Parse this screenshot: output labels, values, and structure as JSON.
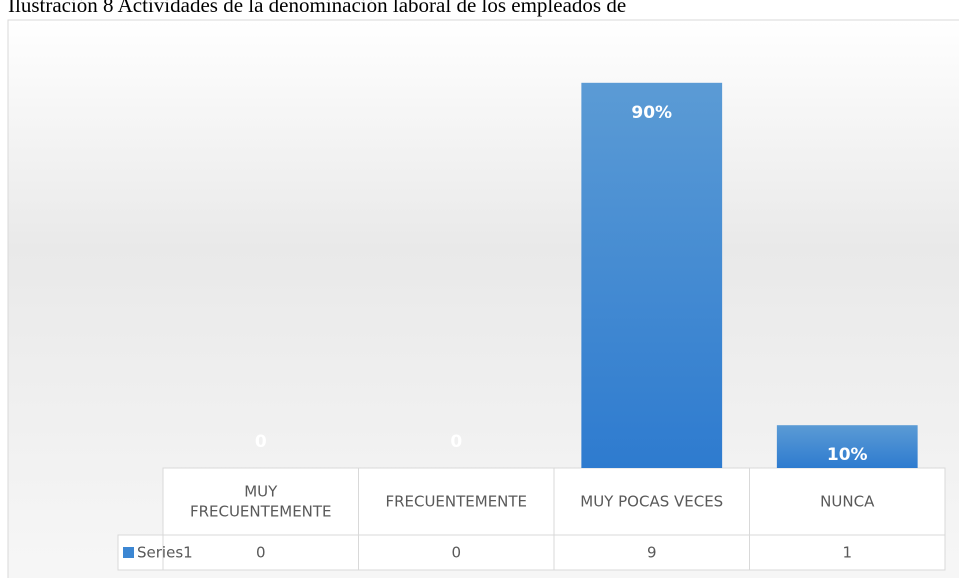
{
  "chart_data": {
    "type": "bar",
    "title": "Ilustración 8 Actividades de la denominación laboral de los empleados de",
    "categories": [
      "MUY FRECUENTEMENTE",
      "FRECUENTEMENTE",
      "MUY POCAS VECES",
      "NUNCA"
    ],
    "series": [
      {
        "name": "Series1",
        "color": "#3c87d3",
        "values": [
          0,
          0,
          9,
          1
        ],
        "value_labels": [
          "0",
          "0",
          "90%",
          "10%"
        ]
      }
    ],
    "ylim": [
      0,
      10
    ]
  }
}
